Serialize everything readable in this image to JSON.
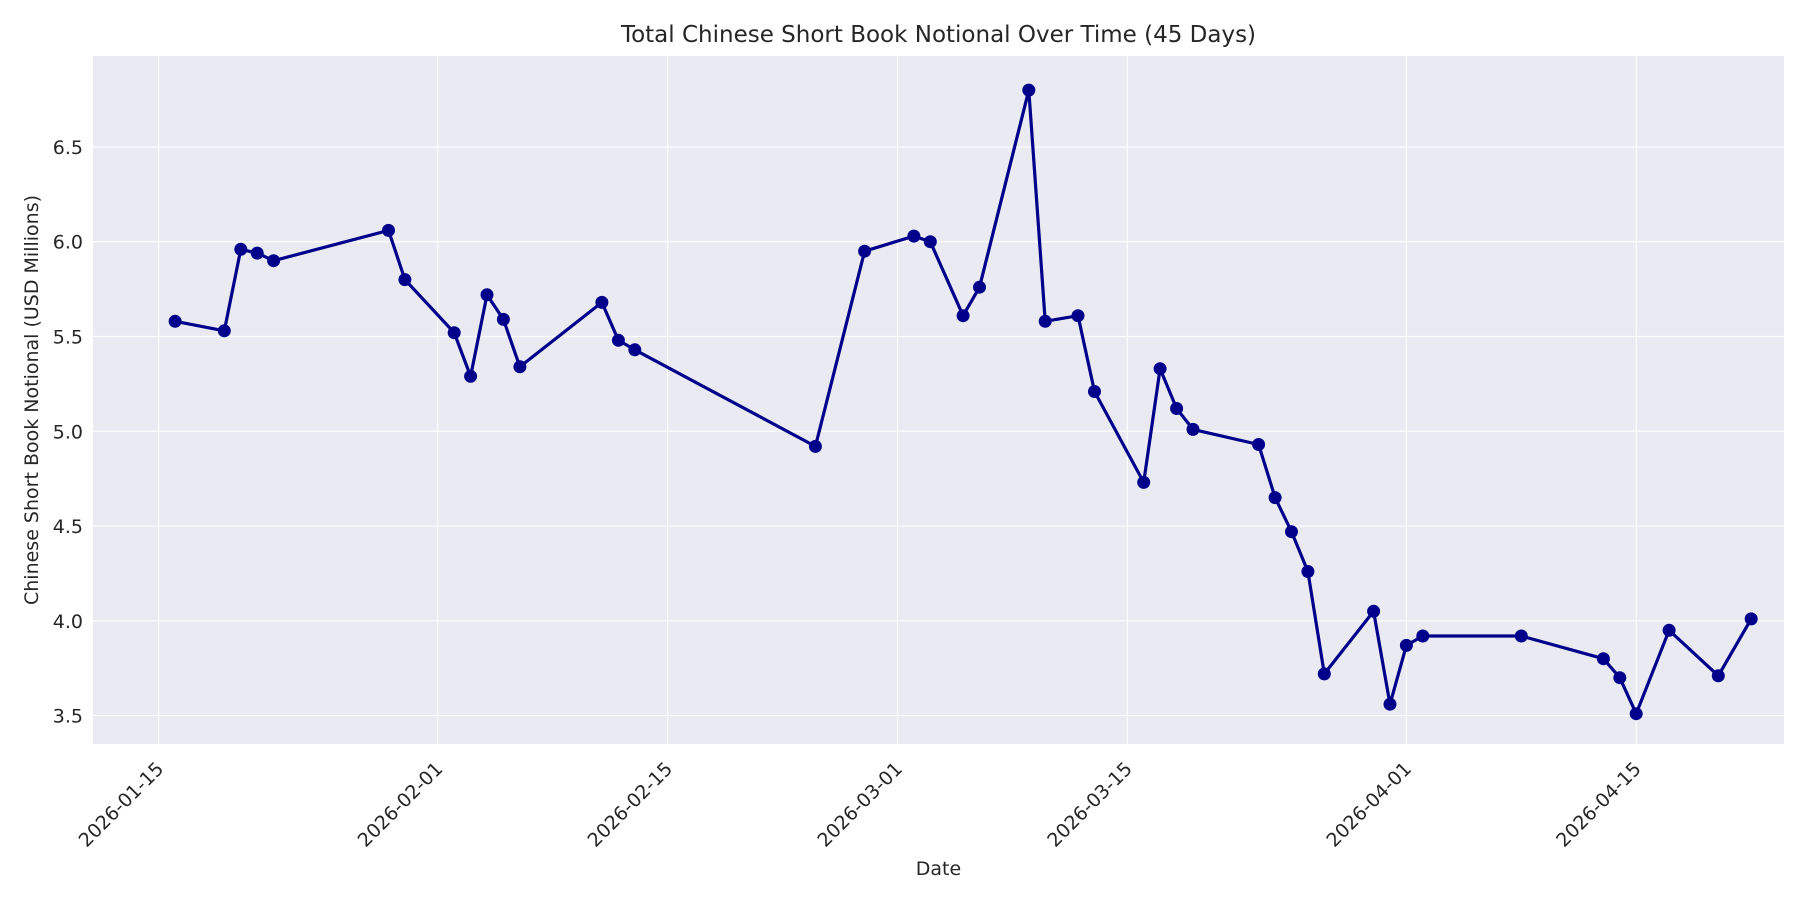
{
  "chart_data": {
    "type": "line",
    "title": "Total Chinese Short Book Notional Over Time (45 Days)",
    "xlabel": "Date",
    "ylabel": "Chinese Short Book Notional (USD Millions)",
    "x_tick_labels": [
      "2026-01-15",
      "2026-02-01",
      "2026-02-15",
      "2026-03-01",
      "2026-03-15",
      "2026-04-01",
      "2026-04-15"
    ],
    "y_tick_labels": [
      "3.5",
      "4.0",
      "4.5",
      "5.0",
      "5.5",
      "6.0",
      "6.5"
    ],
    "y_ticks": [
      3.5,
      4.0,
      4.5,
      5.0,
      5.5,
      6.0,
      6.5
    ],
    "xlim": [
      "2026-01-11",
      "2026-04-24"
    ],
    "ylim": [
      3.35,
      6.98
    ],
    "grid": true,
    "line_color": "#00008b",
    "plot_background": "#eaeaf2",
    "series": [
      {
        "x": [
          "2026-01-16",
          "2026-01-19",
          "2026-01-20",
          "2026-01-21",
          "2026-01-22",
          "2026-01-29",
          "2026-01-30",
          "2026-02-02",
          "2026-02-03",
          "2026-02-04",
          "2026-02-05",
          "2026-02-06",
          "2026-02-11",
          "2026-02-12",
          "2026-02-13",
          "2026-02-24",
          "2026-02-27",
          "2026-03-02",
          "2026-03-03",
          "2026-03-05",
          "2026-03-06",
          "2026-03-09",
          "2026-03-10",
          "2026-03-12",
          "2026-03-13",
          "2026-03-16",
          "2026-03-17",
          "2026-03-18",
          "2026-03-19",
          "2026-03-23",
          "2026-03-24",
          "2026-03-25",
          "2026-03-26",
          "2026-03-27",
          "2026-03-30",
          "2026-03-31",
          "2026-04-01",
          "2026-04-02",
          "2026-04-08",
          "2026-04-13",
          "2026-04-14",
          "2026-04-15",
          "2026-04-17",
          "2026-04-20",
          "2026-04-22"
        ],
        "values": [
          5.58,
          5.53,
          5.96,
          5.94,
          5.9,
          6.06,
          5.8,
          5.52,
          5.29,
          5.72,
          5.59,
          5.34,
          5.68,
          5.48,
          5.43,
          4.92,
          5.95,
          6.03,
          6.0,
          5.61,
          5.76,
          6.8,
          5.58,
          5.61,
          5.21,
          4.73,
          5.33,
          5.12,
          5.01,
          4.93,
          4.65,
          4.47,
          4.26,
          3.72,
          4.05,
          3.56,
          3.87,
          3.92,
          3.92,
          3.8,
          3.7,
          3.51,
          3.95,
          3.71,
          4.01
        ]
      }
    ]
  }
}
